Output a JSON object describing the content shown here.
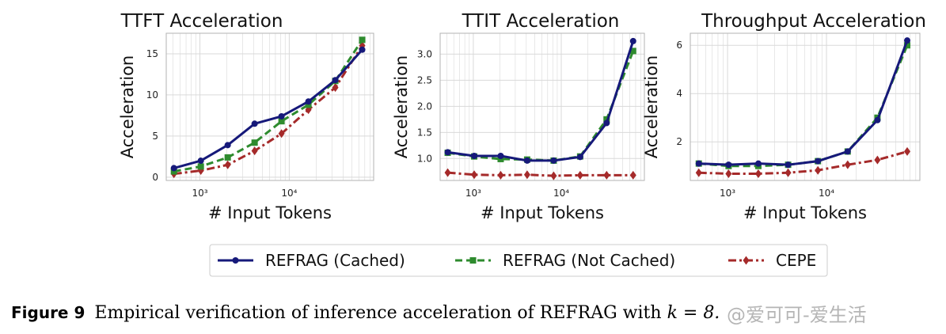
{
  "chart_data": [
    {
      "type": "line",
      "title": "TTFT Acceleration",
      "xlabel": "# Input Tokens",
      "ylabel": "Acceleration",
      "xscale": "log",
      "xlim": [
        420,
        88000
      ],
      "ylim": [
        -0.4,
        17.5
      ],
      "xticks": [
        {
          "value": 1000,
          "label": "10³"
        },
        {
          "value": 10000,
          "label": "10⁴"
        }
      ],
      "yticks": [
        {
          "value": 0,
          "label": "0"
        },
        {
          "value": 5,
          "label": "5"
        },
        {
          "value": 10,
          "label": "10"
        },
        {
          "value": 15,
          "label": "15"
        }
      ],
      "x": [
        512,
        1024,
        2048,
        4096,
        8192,
        16384,
        32768,
        65536
      ],
      "series": [
        {
          "name": "REFRAG (Cached)",
          "key": "cached",
          "values": [
            1.1,
            2.0,
            3.9,
            6.5,
            7.4,
            9.2,
            11.8,
            15.5
          ]
        },
        {
          "name": "REFRAG (Not Cached)",
          "key": "notcached",
          "values": [
            0.7,
            1.3,
            2.4,
            4.2,
            6.8,
            8.8,
            11.7,
            16.7
          ]
        },
        {
          "name": "CEPE",
          "key": "cepe",
          "values": [
            0.4,
            0.8,
            1.5,
            3.2,
            5.3,
            8.2,
            10.9,
            16.0
          ]
        }
      ],
      "grid": true
    },
    {
      "type": "line",
      "title": "TTIT Acceleration",
      "xlabel": "# Input Tokens",
      "ylabel": "Acceleration",
      "xscale": "log",
      "xlim": [
        420,
        88000
      ],
      "ylim": [
        0.58,
        3.4
      ],
      "xticks": [
        {
          "value": 1000,
          "label": "10³"
        },
        {
          "value": 10000,
          "label": "10⁴"
        }
      ],
      "yticks": [
        {
          "value": 1.0,
          "label": "1.0"
        },
        {
          "value": 1.5,
          "label": "1.5"
        },
        {
          "value": 2.0,
          "label": "2.0"
        },
        {
          "value": 2.5,
          "label": "2.5"
        },
        {
          "value": 3.0,
          "label": "3.0"
        }
      ],
      "x": [
        512,
        1024,
        2048,
        4096,
        8192,
        16384,
        32768,
        65536
      ],
      "series": [
        {
          "name": "REFRAG (Cached)",
          "key": "cached",
          "values": [
            1.12,
            1.05,
            1.05,
            0.96,
            0.96,
            1.03,
            1.68,
            3.25
          ]
        },
        {
          "name": "REFRAG (Not Cached)",
          "key": "notcached",
          "values": [
            1.11,
            1.04,
            0.99,
            0.98,
            0.96,
            1.04,
            1.75,
            3.06
          ]
        },
        {
          "name": "CEPE",
          "key": "cepe",
          "values": [
            0.73,
            0.69,
            0.68,
            0.69,
            0.67,
            0.68,
            0.68,
            0.68
          ]
        }
      ],
      "grid": true
    },
    {
      "type": "line",
      "title": "Throughput Acceleration",
      "xlabel": "# Input Tokens",
      "ylabel": "Acceleration",
      "xscale": "log",
      "xlim": [
        420,
        88000
      ],
      "ylim": [
        0.4,
        6.5
      ],
      "xticks": [
        {
          "value": 1000,
          "label": "10³"
        },
        {
          "value": 10000,
          "label": "10⁴"
        }
      ],
      "yticks": [
        {
          "value": 2,
          "label": "2"
        },
        {
          "value": 4,
          "label": "4"
        },
        {
          "value": 6,
          "label": "6"
        }
      ],
      "x": [
        512,
        1024,
        2048,
        4096,
        8192,
        16384,
        32768,
        65536
      ],
      "series": [
        {
          "name": "REFRAG (Cached)",
          "key": "cached",
          "values": [
            1.1,
            1.05,
            1.1,
            1.05,
            1.2,
            1.6,
            2.9,
            6.2
          ]
        },
        {
          "name": "REFRAG (Not Cached)",
          "key": "notcached",
          "values": [
            1.1,
            1.0,
            1.0,
            1.05,
            1.2,
            1.6,
            3.0,
            6.0
          ]
        },
        {
          "name": "CEPE",
          "key": "cepe",
          "values": [
            0.72,
            0.68,
            0.68,
            0.72,
            0.82,
            1.05,
            1.25,
            1.6
          ]
        }
      ],
      "grid": true
    }
  ],
  "legend": {
    "placement": "bottom-center",
    "entries": [
      {
        "key": "cached",
        "label": "REFRAG (Cached)"
      },
      {
        "key": "notcached",
        "label": "REFRAG (Not Cached)"
      },
      {
        "key": "cepe",
        "label": "CEPE"
      }
    ]
  },
  "styles": {
    "cached": {
      "color": "#16197a",
      "dash": "solid",
      "marker": "circle"
    },
    "notcached": {
      "color": "#2e8b2e",
      "dash": "dashed",
      "marker": "square"
    },
    "cepe": {
      "color": "#a52a2a",
      "dash": "dashdot",
      "marker": "diamond"
    },
    "grid_color": "#d9d9d9",
    "frame_color": "#b3b3b3"
  },
  "caption": {
    "label": "Figure 9",
    "text": "Empirical verification of inference acceleration of REFRAG with",
    "math": "k = 8."
  },
  "watermark": "@爱可可-爱生活"
}
